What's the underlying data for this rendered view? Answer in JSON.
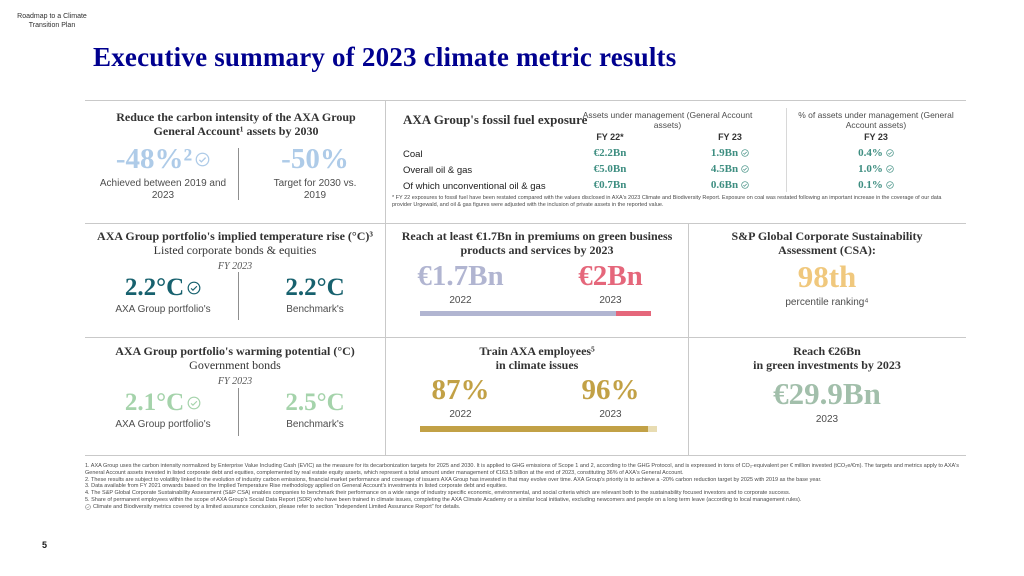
{
  "meta": {
    "brand_line1": "Roadmap to a Climate",
    "brand_line2": "Transition Plan",
    "title": "Executive summary of 2023 climate metric results",
    "page_number": "5"
  },
  "colors": {
    "axa_blue": "#00008f",
    "light_blue": "#aecbe8",
    "dark_teal": "#17616e",
    "teal": "#3e8e81",
    "light_green": "#a5d3ab",
    "lavender": "#b1b5d1",
    "pink": "#e5677b",
    "gold_light": "#f0c87d",
    "gold": "#c2a146",
    "gold_pale": "#e8dcb2",
    "sage": "#a2bfab"
  },
  "carbon_intensity": {
    "title": "Reduce the carbon intensity of the AXA Group General Account¹ assets by 2030",
    "achieved_value": "-48%²",
    "achieved_label": "Achieved between 2019 and 2023",
    "target_value": "-50%",
    "target_label": "Target for 2030 vs. 2019"
  },
  "fossil_fuel": {
    "title": "AXA Group's fossil fuel exposure",
    "group1_header": "Assets under management (General Account assets)",
    "group2_header": "% of assets under management (General Account assets)",
    "fy22_label": "FY 22*",
    "fy23_label": "FY 23",
    "pct_fy23_label": "FY 23",
    "rows": [
      {
        "label": "Coal",
        "fy22": "€2.2Bn",
        "fy23": "1.9Bn",
        "pct": "0.4%"
      },
      {
        "label": "Overall oil & gas",
        "fy22": "€5.0Bn",
        "fy23": "4.5Bn",
        "pct": "1.0%"
      },
      {
        "label": "Of which unconventional oil & gas",
        "fy22": "€0.7Bn",
        "fy23": "0.6Bn",
        "pct": "0.1%"
      }
    ],
    "footnote": "* FY 22 exposures to fossil fuel have been restated compared with the values disclosed in AXA's 2023 Climate and Biodiversity Report. Exposure on coal was restated following an important increase in the coverage of our data provider Urgewald, and oil & gas figures were adjusted with the inclusion of private assets in the reported value."
  },
  "implied_temperature": {
    "title": "AXA Group portfolio's implied temperature rise (°C)³",
    "subtitle": "Listed corporate bonds & equities",
    "period": "FY 2023",
    "left_value": "2.2°C",
    "left_label": "AXA Group portfolio's",
    "right_value": "2.2°C",
    "right_label": "Benchmark's"
  },
  "green_premiums": {
    "title": "Reach at least €1.7Bn in premiums on green business products and services by 2023",
    "value_2022": "€1.7Bn",
    "year_2022": "2022",
    "value_2023": "€2Bn",
    "year_2023": "2023",
    "bar_achieved_pct": 85,
    "bar_remainder_pct": 15
  },
  "csa": {
    "title": "S&P Global Corporate Sustainability Assessment (CSA):",
    "value": "98th",
    "label": "percentile ranking⁴"
  },
  "warming_potential": {
    "title": "AXA Group portfolio's warming potential (°C)",
    "subtitle": "Government bonds",
    "period": "FY 2023",
    "left_value": "2.1°C",
    "left_label": "AXA Group portfolio's",
    "right_value": "2.5°C",
    "right_label": "Benchmark's"
  },
  "training": {
    "title_line1": "Train AXA employees⁵",
    "title_line2": "in climate issues",
    "value_2022": "87%",
    "year_2022": "2022",
    "value_2023": "96%",
    "year_2023": "2023",
    "bar_trained_pct": 96,
    "bar_remainder_pct": 4
  },
  "green_investments": {
    "title_line1": "Reach €26Bn",
    "title_line2": "in green investments by 2023",
    "value": "€29.9Bn",
    "year": "2023"
  },
  "footnotes": [
    "1. AXA Group uses the carbon intensity normalized by Enterprise Value Including Cash (EVIC) as the measure for its decarbonization targets for 2025 and 2030. It is applied to GHG emissions of Scope 1 and 2, according to the GHG Protocol, and is expressed in tons of CO₂-equivalent per € million invested (tCO₂e/€m). The targets and metrics apply to AXA's General Account assets invested in listed corporate debt and equities, complemented by real estate equity assets, which represent a total amount under management of €163.5 billion at the end of 2023, constituting 36% of AXA's General Account.",
    "2. These results are subject to volatility linked to the evolution of industry carbon emissions, financial market performance and coverage of issuers AXA Group has invested in that may evolve over time. AXA Group's priority is to achieve a -20% carbon reduction target by 2025 with 2019 as the base year.",
    "3. Data available from FY 2021 onwards based on the Implied Temperature Rise methodology applied on General Account's investments in listed corporate debt and equities.",
    "4. The S&P Global Corporate Sustainability Assessment (S&P CSA) enables companies to benchmark their performance on a wide range of industry specific economic, environmental, and social criteria which are relevant both to the sustainability focused investors and to corporate success.",
    "5. Share of permanent employees within the scope of AXA Group's Social Data Report (SDR) who have been trained in climate issues, completing the AXA Climate Academy or a similar local initiative, excluding newcomers and people on a long term leave (according to local management rules)."
  ],
  "assurance_note": "Climate and Biodiversity metrics covered by a limited assurance conclusion, please refer to section “Independent Limited Assurance Report” for details."
}
